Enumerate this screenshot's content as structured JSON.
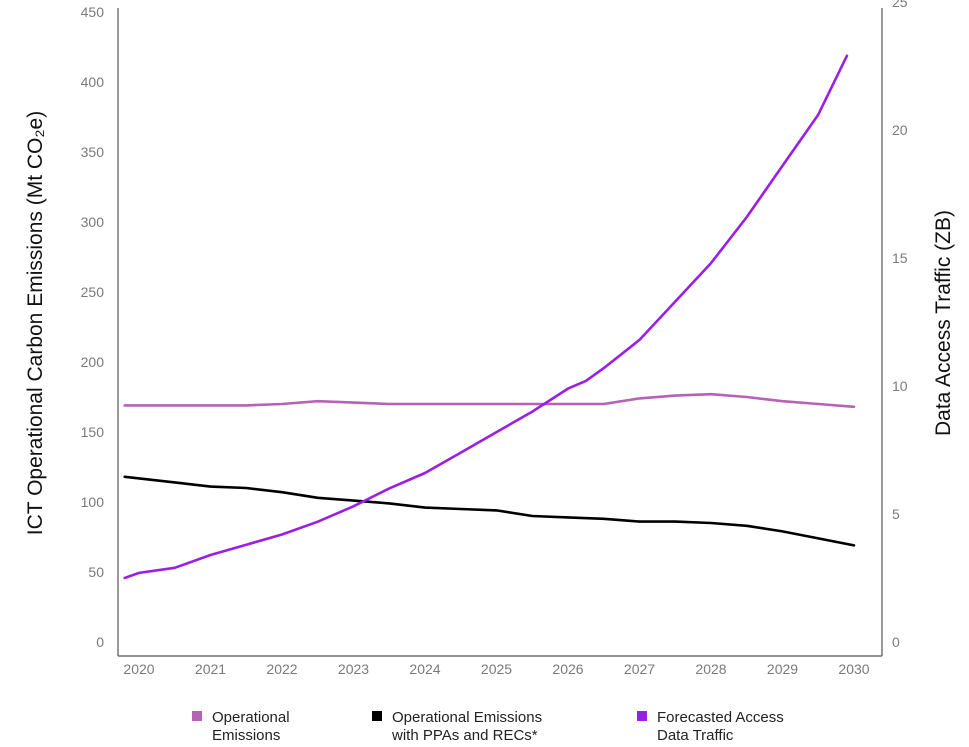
{
  "chart_data": {
    "type": "line",
    "title": "",
    "ylabel_left": "ICT Operational Carbon Emissions (Mt CO₂e)",
    "ylabel_right": "Data Access Traffic (ZB)",
    "x_ticks": [
      "2020",
      "2021",
      "2022",
      "2023",
      "2024",
      "2025",
      "2026",
      "2027",
      "2028",
      "2029",
      "2030"
    ],
    "y_left_ticks": [
      "0",
      "50",
      "100",
      "150",
      "200",
      "250",
      "300",
      "350",
      "400",
      "450"
    ],
    "y_right_ticks": [
      "0",
      "5",
      "10",
      "15",
      "20",
      "25"
    ],
    "legend_placement": "bottom",
    "series": [
      {
        "name": "Operational Emissions",
        "legend": [
          "Operational",
          "Emissions"
        ],
        "axis": "left",
        "color": "#b562b7",
        "x": [
          2019.8,
          2020.5,
          2021,
          2021.5,
          2022,
          2022.5,
          2023,
          2023.5,
          2024,
          2024.5,
          2025,
          2025.5,
          2026,
          2026.5,
          2027,
          2027.5,
          2028,
          2028.5,
          2029,
          2029.5,
          2030
        ],
        "values": [
          169,
          169,
          169,
          169,
          170,
          172,
          171,
          170,
          170,
          170,
          170,
          170,
          170,
          170,
          174,
          176,
          177,
          175,
          172,
          170,
          168
        ]
      },
      {
        "name": "Operational Emissions with PPAs and RECs*",
        "legend": [
          "Operational Emissions",
          "with PPAs and RECs*"
        ],
        "axis": "left",
        "color": "#000000",
        "x": [
          2019.8,
          2020.5,
          2021,
          2021.5,
          2022,
          2022.5,
          2023,
          2023.5,
          2024,
          2024.5,
          2025,
          2025.5,
          2026,
          2026.5,
          2027,
          2027.5,
          2028,
          2028.5,
          2029,
          2029.5,
          2030
        ],
        "values": [
          118,
          114,
          111,
          110,
          107,
          103,
          101,
          99,
          96,
          95,
          94,
          90,
          89,
          88,
          86,
          86,
          85,
          83,
          79,
          74,
          69
        ]
      },
      {
        "name": "Forecasted Access Data Traffic",
        "legend": [
          "Forecasted Access",
          "Data Traffic"
        ],
        "axis": "right",
        "color": "#9b1ee6",
        "x": [
          2019.8,
          2020,
          2020.5,
          2021,
          2021.5,
          2022,
          2022.5,
          2023,
          2023.5,
          2024,
          2024.5,
          2025,
          2025.5,
          2026,
          2026.25,
          2026.5,
          2027,
          2027.5,
          2028,
          2028.5,
          2029,
          2029.5,
          2029.9
        ],
        "values": [
          2.5,
          2.7,
          2.9,
          3.4,
          3.8,
          4.2,
          4.7,
          5.3,
          6.0,
          6.6,
          7.4,
          8.2,
          9.0,
          9.9,
          10.2,
          10.7,
          11.8,
          13.3,
          14.8,
          16.6,
          18.6,
          20.6,
          22.9
        ]
      }
    ],
    "left_axis": {
      "min": 0,
      "max": 450
    },
    "right_axis": {
      "min": 0,
      "max": 25
    },
    "x_axis": {
      "min": 2019.8,
      "max": 2030.3
    }
  }
}
